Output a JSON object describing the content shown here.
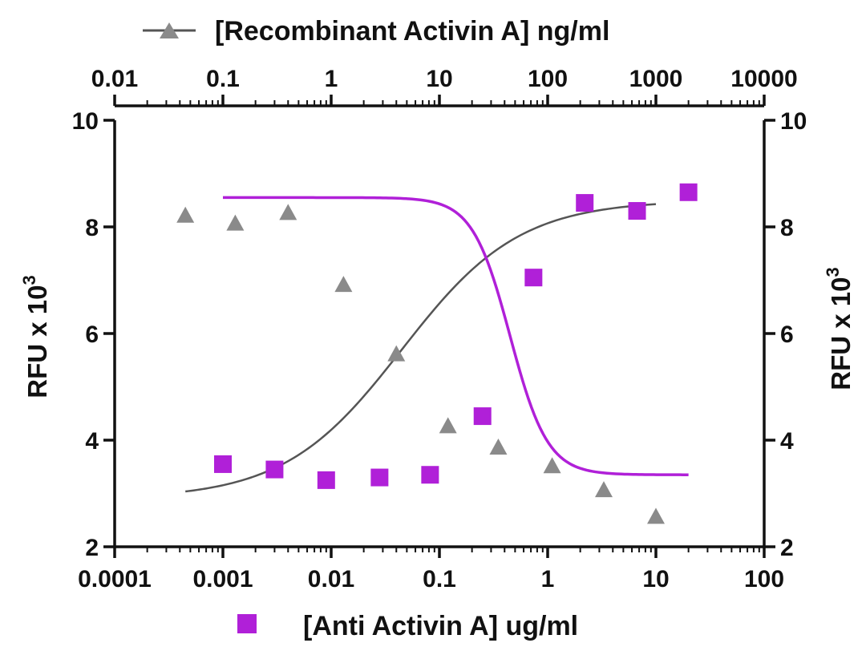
{
  "chart_data": {
    "type": "scatter",
    "title": "",
    "x_bottom": {
      "label": "[Anti Activin A] ug/ml",
      "scale": "log",
      "range": [
        0.0001,
        100
      ],
      "ticks": [
        0.0001,
        0.001,
        0.01,
        0.1,
        1,
        10,
        100
      ],
      "tick_labels": [
        "0.0001",
        "0.001",
        "0.01",
        "0.1",
        "1",
        "10",
        "100"
      ]
    },
    "x_top": {
      "label": "[Recombinant Activin A] ng/ml",
      "scale": "log",
      "range": [
        0.01,
        10000
      ],
      "ticks": [
        0.01,
        0.1,
        1,
        10,
        100,
        1000,
        10000
      ],
      "tick_labels": [
        "0.01",
        "0.1",
        "1",
        "10",
        "100",
        "1000",
        "10000"
      ]
    },
    "y_left": {
      "label": "RFU x 10",
      "label_superscript": "3",
      "range": [
        2,
        10
      ],
      "ticks": [
        2,
        4,
        6,
        8,
        10
      ],
      "tick_labels": [
        "2",
        "4",
        "6",
        "8",
        "10"
      ]
    },
    "y_right": {
      "label": "RFU x 10",
      "label_superscript": "3",
      "range": [
        2,
        10
      ],
      "ticks": [
        2,
        4,
        6,
        8,
        10
      ],
      "tick_labels": [
        "2",
        "4",
        "6",
        "8",
        "10"
      ]
    },
    "grid": false,
    "series": [
      {
        "name": "[Recombinant Activin A] ng/ml",
        "axis": "top",
        "marker": "triangle",
        "color": "#8a8a8a",
        "line_color": "#555555",
        "points": [
          {
            "x": 0.045,
            "y": 8.2
          },
          {
            "x": 0.13,
            "y": 8.05
          },
          {
            "x": 0.4,
            "y": 8.25
          },
          {
            "x": 1.3,
            "y": 6.9
          },
          {
            "x": 4.0,
            "y": 5.6
          },
          {
            "x": 12,
            "y": 4.25
          },
          {
            "x": 35,
            "y": 3.85
          },
          {
            "x": 110,
            "y": 3.5
          },
          {
            "x": 330,
            "y": 3.05
          },
          {
            "x": 1000,
            "y": 2.55
          }
        ],
        "fit": {
          "top": 8.5,
          "bottom": 2.9,
          "ec50": 4.5,
          "hill": -0.8,
          "x_from": 0.045,
          "x_to": 1000
        }
      },
      {
        "name": "[Anti Activin A] ug/ml",
        "axis": "bottom",
        "marker": "square",
        "color": "#b020d8",
        "line_color": "#b020d8",
        "points": [
          {
            "x": 0.001,
            "y": 3.55
          },
          {
            "x": 0.003,
            "y": 3.45
          },
          {
            "x": 0.009,
            "y": 3.25
          },
          {
            "x": 0.028,
            "y": 3.3
          },
          {
            "x": 0.082,
            "y": 3.35
          },
          {
            "x": 0.25,
            "y": 4.45
          },
          {
            "x": 0.74,
            "y": 7.05
          },
          {
            "x": 2.2,
            "y": 8.45
          },
          {
            "x": 6.7,
            "y": 8.3
          },
          {
            "x": 20,
            "y": 8.65
          }
        ],
        "fit": {
          "top": 8.55,
          "bottom": 3.35,
          "ec50": 0.45,
          "hill": 2.5,
          "x_from": 0.001,
          "x_to": 20
        }
      }
    ]
  }
}
